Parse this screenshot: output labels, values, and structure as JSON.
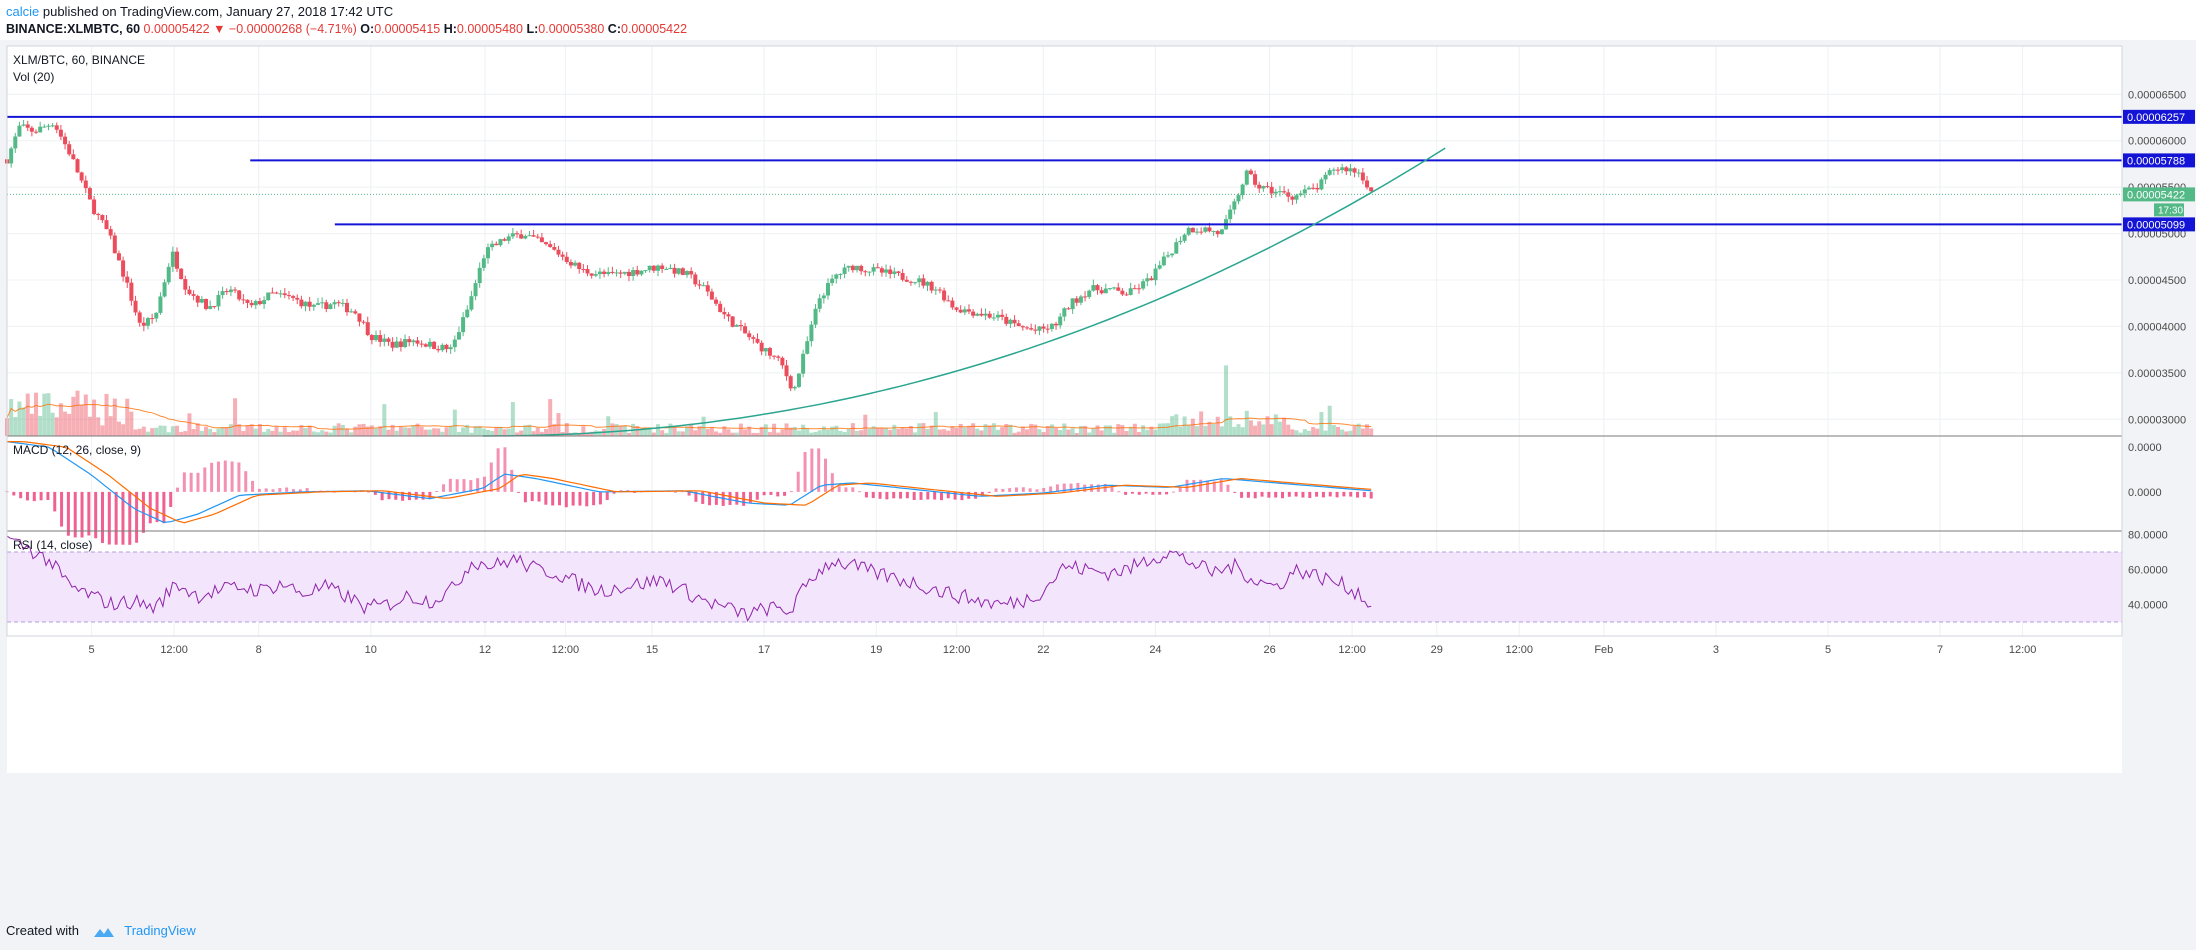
{
  "header": {
    "author": "calcie",
    "published_text": " published on TradingView.com, January 27, 2018 17:42 UTC",
    "symbol": "BINANCE:XLMBTC, 60",
    "last": "0.00005422",
    "change": "−0.00000268 (−4.71%)",
    "open_label": "O:",
    "open": "0.00005415",
    "high_label": "H:",
    "high": "0.00005480",
    "low_label": "L:",
    "low": "0.00005380",
    "close_label": "C:",
    "close": "0.00005422"
  },
  "footer": {
    "created_with": "Created with",
    "brand": "TradingView"
  },
  "colors": {
    "up": "#53b987",
    "down": "#eb4d5c",
    "level": "#1414d6",
    "curve": "#2aa58f",
    "macd": "#2196f3",
    "signal": "#ff6d00",
    "rsi": "#8e24aa",
    "rsi_band": "#f3e5fb"
  },
  "chart_data": [
    {
      "type": "candlestick",
      "title": "XLM/BTC, 60, BINANCE",
      "ylim": [
        2.82e-05,
        7.02e-05
      ],
      "y_ticks": [
        3e-05,
        3.5e-05,
        4e-05,
        4.5e-05,
        5e-05,
        5.5e-05,
        6e-05,
        6.5e-05
      ],
      "y_tick_labels": [
        "0.00003000",
        "0.00003500",
        "0.00004000",
        "0.00004500",
        "0.00005000",
        "0.00005500",
        "0.00006000",
        "0.00006500"
      ],
      "x_ticks": [
        "5",
        "12:00",
        "8",
        "10",
        "12",
        "12:00",
        "15",
        "17",
        "19",
        "12:00",
        "22",
        "24",
        "26",
        "12:00",
        "29",
        "12:00",
        "Feb",
        "3",
        "5",
        "7",
        "12:00"
      ],
      "x_tick_fraction": [
        0.04,
        0.079,
        0.119,
        0.172,
        0.226,
        0.264,
        0.305,
        0.358,
        0.411,
        0.449,
        0.49,
        0.543,
        0.597,
        0.636,
        0.676,
        0.715,
        0.755,
        0.808,
        0.861,
        0.914,
        0.953
      ],
      "price_path": [
        [
          0,
          5.8e-05
        ],
        [
          0.006,
          6.15e-05
        ],
        [
          0.013,
          6.1e-05
        ],
        [
          0.022,
          6.2e-05
        ],
        [
          0.03,
          5.85e-05
        ],
        [
          0.04,
          5.3e-05
        ],
        [
          0.048,
          5e-05
        ],
        [
          0.056,
          4.5e-05
        ],
        [
          0.063,
          4e-05
        ],
        [
          0.07,
          4.1e-05
        ],
        [
          0.078,
          4.8e-05
        ],
        [
          0.085,
          4.4e-05
        ],
        [
          0.095,
          4.2e-05
        ],
        [
          0.105,
          4.4e-05
        ],
        [
          0.115,
          4.2e-05
        ],
        [
          0.125,
          4.35e-05
        ],
        [
          0.135,
          4.3e-05
        ],
        [
          0.145,
          4.2e-05
        ],
        [
          0.155,
          4.25e-05
        ],
        [
          0.165,
          4.15e-05
        ],
        [
          0.172,
          3.9e-05
        ],
        [
          0.182,
          3.8e-05
        ],
        [
          0.192,
          3.85e-05
        ],
        [
          0.2,
          3.8e-05
        ],
        [
          0.21,
          3.75e-05
        ],
        [
          0.218,
          4.2e-05
        ],
        [
          0.226,
          4.8e-05
        ],
        [
          0.236,
          4.95e-05
        ],
        [
          0.245,
          5e-05
        ],
        [
          0.252,
          4.9e-05
        ],
        [
          0.26,
          4.8e-05
        ],
        [
          0.272,
          4.6e-05
        ],
        [
          0.285,
          4.55e-05
        ],
        [
          0.298,
          4.6e-05
        ],
        [
          0.31,
          4.65e-05
        ],
        [
          0.322,
          4.55e-05
        ],
        [
          0.33,
          4.4e-05
        ],
        [
          0.34,
          4.1e-05
        ],
        [
          0.35,
          3.9e-05
        ],
        [
          0.358,
          3.75e-05
        ],
        [
          0.366,
          3.6e-05
        ],
        [
          0.372,
          3.3e-05
        ],
        [
          0.378,
          3.8e-05
        ],
        [
          0.384,
          4.3e-05
        ],
        [
          0.392,
          4.55e-05
        ],
        [
          0.4,
          4.65e-05
        ],
        [
          0.41,
          4.6e-05
        ],
        [
          0.42,
          4.55e-05
        ],
        [
          0.43,
          4.5e-05
        ],
        [
          0.44,
          4.4e-05
        ],
        [
          0.448,
          4.2e-05
        ],
        [
          0.458,
          4.15e-05
        ],
        [
          0.468,
          4.1e-05
        ],
        [
          0.478,
          4e-05
        ],
        [
          0.487,
          3.95e-05
        ],
        [
          0.495,
          4e-05
        ],
        [
          0.503,
          4.25e-05
        ],
        [
          0.512,
          4.4e-05
        ],
        [
          0.52,
          4.4e-05
        ],
        [
          0.53,
          4.35e-05
        ],
        [
          0.54,
          4.5e-05
        ],
        [
          0.55,
          4.8e-05
        ],
        [
          0.558,
          5.05e-05
        ],
        [
          0.566,
          5.05e-05
        ],
        [
          0.574,
          5e-05
        ],
        [
          0.58,
          5.3e-05
        ],
        [
          0.586,
          5.65e-05
        ],
        [
          0.592,
          5.5e-05
        ],
        [
          0.6,
          5.45e-05
        ],
        [
          0.608,
          5.4e-05
        ],
        [
          0.614,
          5.45e-05
        ],
        [
          0.62,
          5.5e-05
        ],
        [
          0.627,
          5.7e-05
        ],
        [
          0.634,
          5.7e-05
        ],
        [
          0.64,
          5.65e-05
        ],
        [
          0.645,
          5.45e-05
        ]
      ],
      "horizontal_levels": [
        6.257e-05,
        5.788e-05,
        5.099e-05
      ],
      "level_labels": [
        "0.00006257",
        "0.00005788",
        "0.00005099"
      ],
      "last_price_label": "0.00005422",
      "countdown_label": "17:30",
      "trend_curve": "parabolic support"
    },
    {
      "type": "bar",
      "title": "Vol (20)"
    },
    {
      "type": "line",
      "title": "MACD (12, 26, close, 9)",
      "ylim": [
        -3.5e-06,
        5e-06
      ],
      "y_ticks": [
        0.0,
        4e-06
      ],
      "y_tick_labels": [
        "0.0000",
        "0.0000"
      ]
    },
    {
      "type": "line",
      "title": "RSI (14, close)",
      "ylim": [
        22,
        82
      ],
      "y_ticks": [
        40,
        60,
        80
      ],
      "y_tick_labels": [
        "40.0000",
        "60.0000",
        "80.0000"
      ],
      "band": [
        30,
        70
      ],
      "rsi_path": [
        [
          0,
          78
        ],
        [
          0.01,
          72
        ],
        [
          0.02,
          65
        ],
        [
          0.03,
          50
        ],
        [
          0.04,
          45
        ],
        [
          0.05,
          40
        ],
        [
          0.06,
          42
        ],
        [
          0.07,
          38
        ],
        [
          0.08,
          52
        ],
        [
          0.09,
          45
        ],
        [
          0.1,
          48
        ],
        [
          0.11,
          50
        ],
        [
          0.12,
          48
        ],
        [
          0.13,
          52
        ],
        [
          0.14,
          46
        ],
        [
          0.15,
          50
        ],
        [
          0.16,
          45
        ],
        [
          0.17,
          38
        ],
        [
          0.18,
          40
        ],
        [
          0.19,
          45
        ],
        [
          0.2,
          42
        ],
        [
          0.21,
          48
        ],
        [
          0.22,
          65
        ],
        [
          0.23,
          62
        ],
        [
          0.24,
          66
        ],
        [
          0.25,
          60
        ],
        [
          0.26,
          58
        ],
        [
          0.27,
          52
        ],
        [
          0.28,
          48
        ],
        [
          0.29,
          50
        ],
        [
          0.3,
          52
        ],
        [
          0.31,
          54
        ],
        [
          0.32,
          48
        ],
        [
          0.33,
          42
        ],
        [
          0.34,
          38
        ],
        [
          0.35,
          34
        ],
        [
          0.36,
          38
        ],
        [
          0.37,
          36
        ],
        [
          0.38,
          55
        ],
        [
          0.39,
          65
        ],
        [
          0.4,
          62
        ],
        [
          0.41,
          58
        ],
        [
          0.42,
          55
        ],
        [
          0.43,
          52
        ],
        [
          0.44,
          48
        ],
        [
          0.45,
          45
        ],
        [
          0.46,
          42
        ],
        [
          0.47,
          40
        ],
        [
          0.48,
          42
        ],
        [
          0.49,
          48
        ],
        [
          0.5,
          62
        ],
        [
          0.51,
          60
        ],
        [
          0.52,
          58
        ],
        [
          0.53,
          60
        ],
        [
          0.54,
          66
        ],
        [
          0.55,
          70
        ],
        [
          0.56,
          64
        ],
        [
          0.57,
          58
        ],
        [
          0.58,
          62
        ],
        [
          0.59,
          54
        ],
        [
          0.6,
          50
        ],
        [
          0.61,
          60
        ],
        [
          0.62,
          56
        ],
        [
          0.63,
          52
        ],
        [
          0.64,
          46
        ],
        [
          0.645,
          38
        ]
      ]
    }
  ]
}
